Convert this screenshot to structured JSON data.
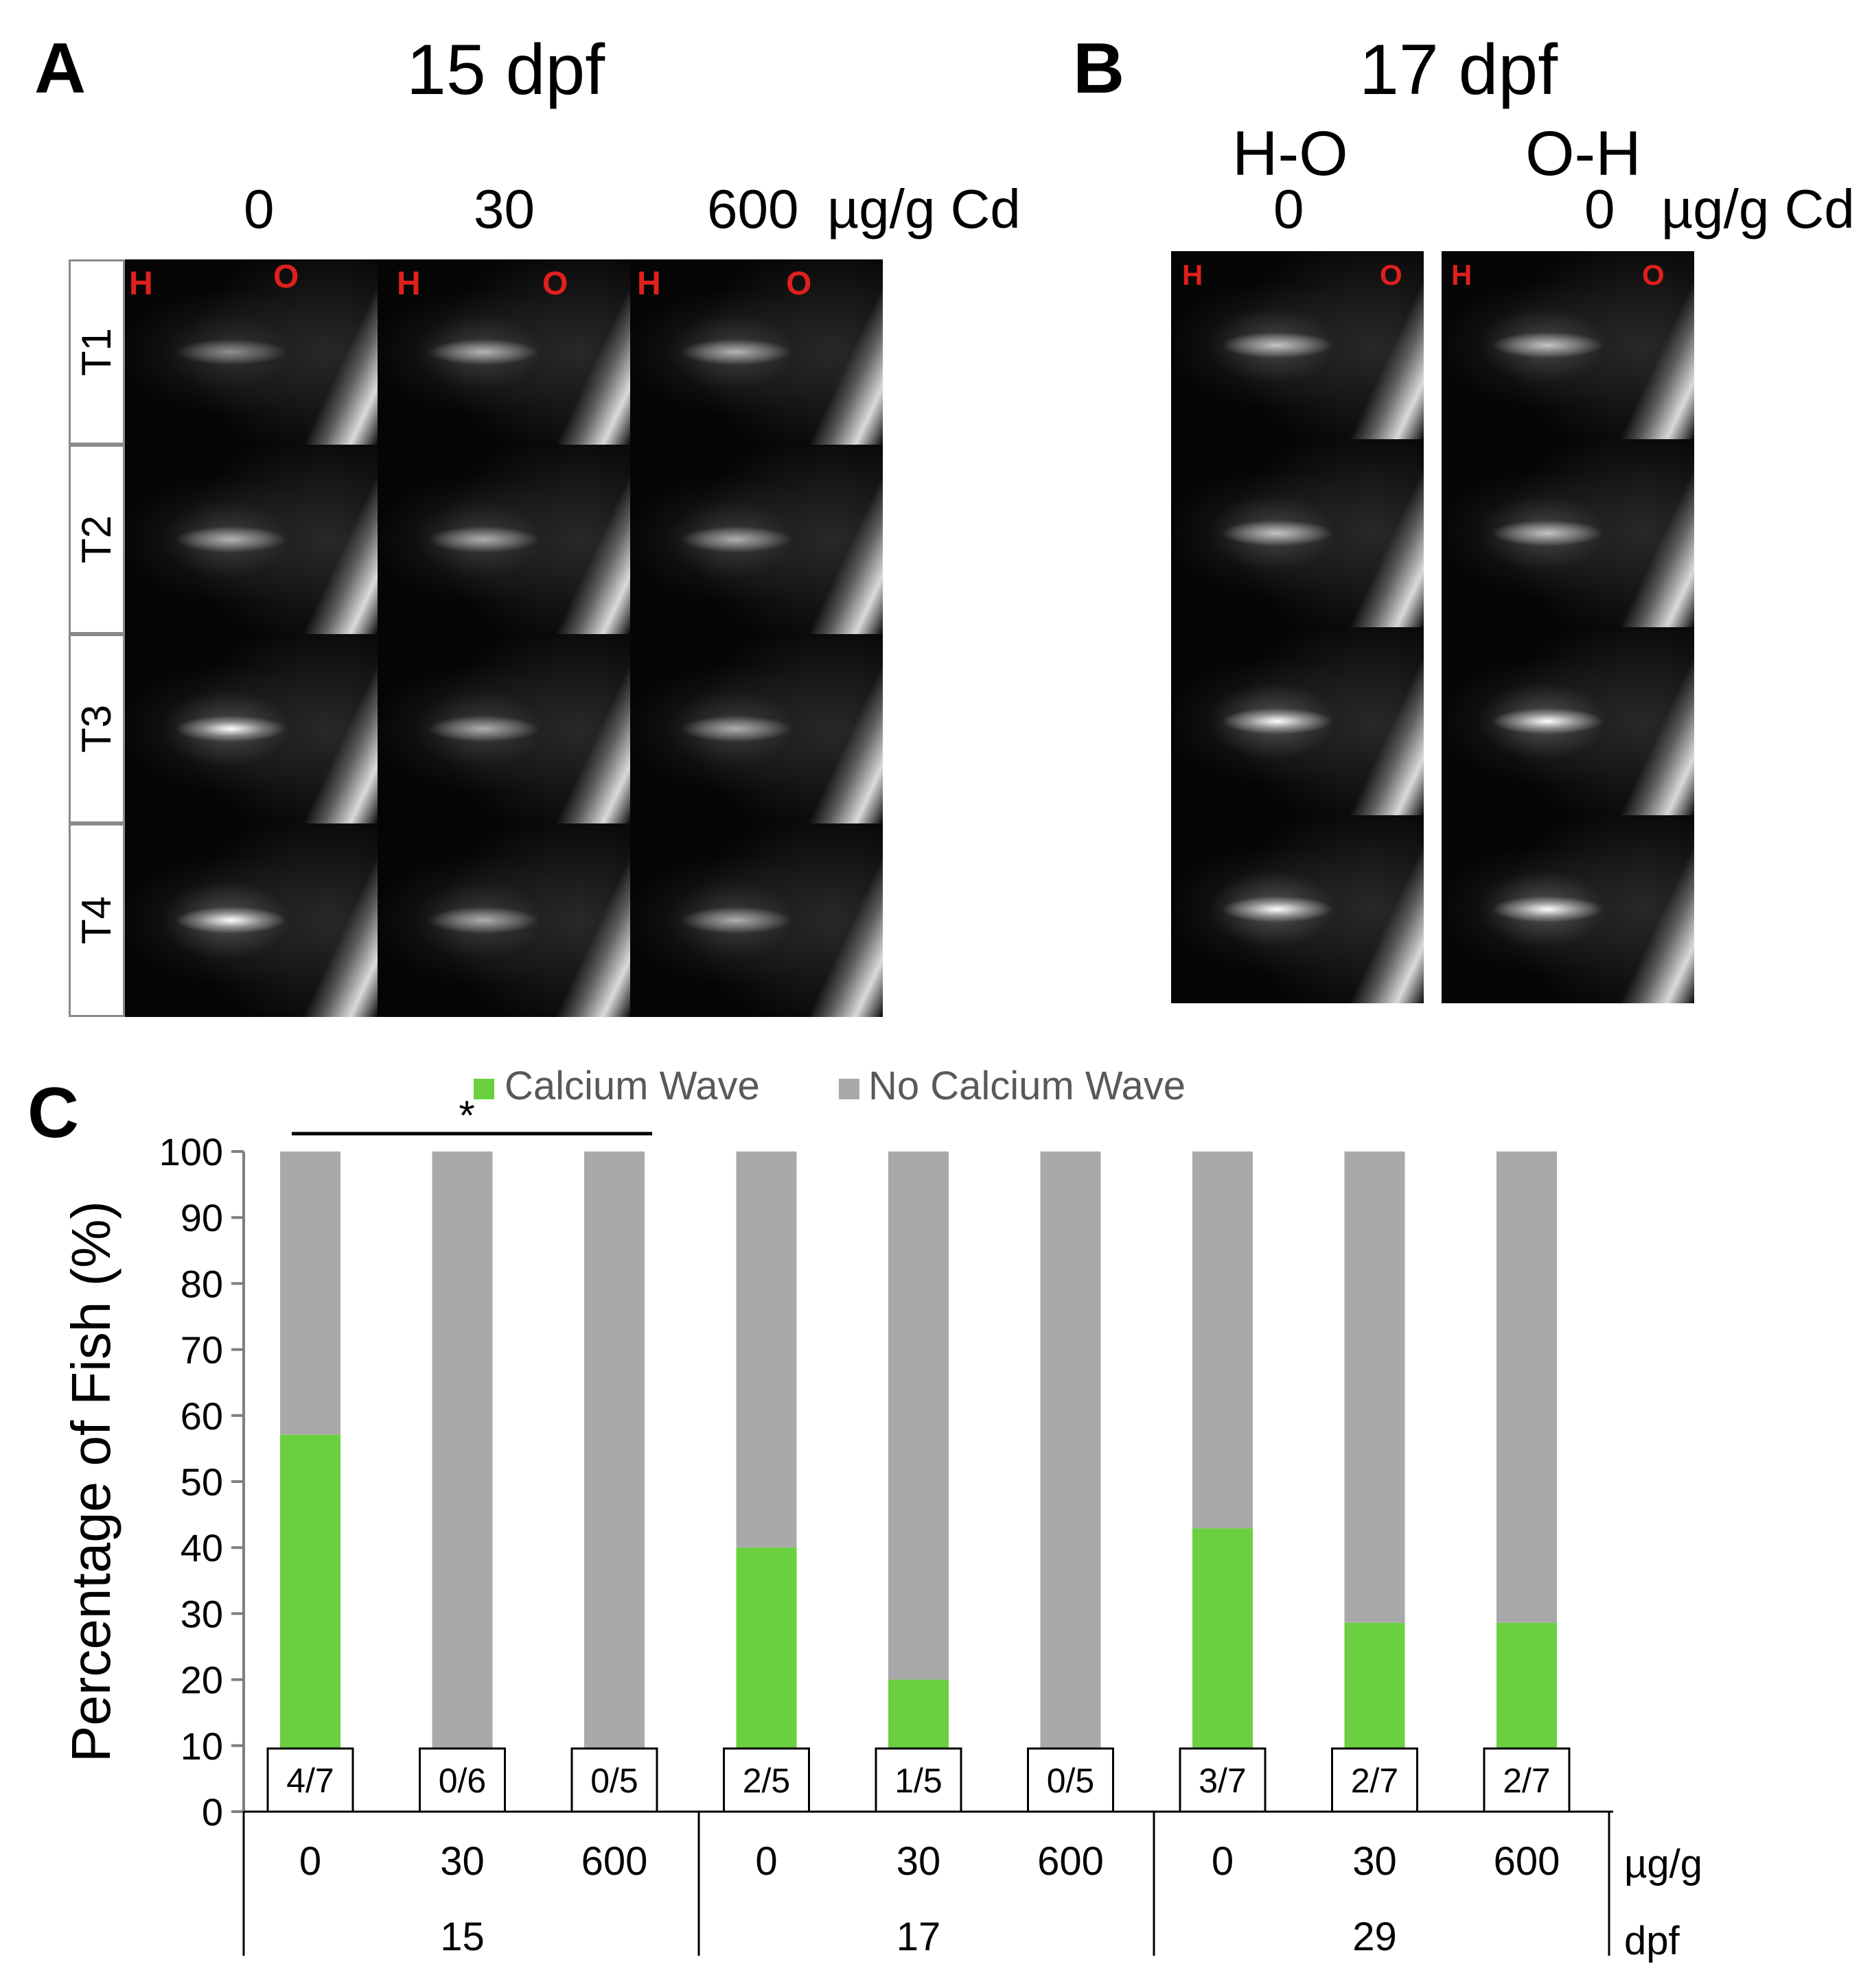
{
  "panel_a": {
    "letter": "A",
    "title": "15 dpf",
    "dose_labels": [
      "0",
      "30",
      "600"
    ],
    "dose_unit": "µg/g Cd",
    "time_labels": [
      "T1",
      "T2",
      "T3",
      "T4"
    ],
    "orientation": {
      "h": "H",
      "o": "O"
    }
  },
  "panel_b": {
    "letter": "B",
    "title": "17 dpf",
    "col_labels": [
      "H-O",
      "O-H"
    ],
    "dose_labels": [
      "0",
      "0"
    ],
    "dose_unit": "µg/g Cd",
    "orientation": {
      "h": "H",
      "o": "O"
    }
  },
  "panel_c": {
    "letter": "C",
    "significance": "*"
  },
  "chart_data": {
    "type": "bar",
    "stacked": true,
    "ylabel": "Percentage of Fish (%)",
    "ylim": [
      0,
      100
    ],
    "yticks": [
      "0",
      "10",
      "20",
      "30",
      "40",
      "50",
      "60",
      "70",
      "80",
      "90",
      "100"
    ],
    "legend_position": "top",
    "categories": [
      "0",
      "30",
      "600",
      "0",
      "30",
      "600",
      "0",
      "30",
      "600"
    ],
    "groups": [
      {
        "label": "15",
        "start": 0,
        "end": 2
      },
      {
        "label": "17",
        "start": 3,
        "end": 5
      },
      {
        "label": "29",
        "start": 6,
        "end": 8
      }
    ],
    "x_unit_labels": {
      "dose": "µg/g",
      "age": "dpf"
    },
    "series": [
      {
        "name": "Calcium Wave",
        "color": "#6ad03f",
        "values": [
          57.1,
          0,
          0,
          40,
          20,
          0,
          42.9,
          28.6,
          28.6
        ]
      },
      {
        "name": "No Calcium Wave",
        "color": "#a9a9a9",
        "values": [
          42.9,
          100,
          100,
          60,
          80,
          100,
          57.1,
          71.4,
          71.4
        ]
      }
    ],
    "box_labels": [
      "4/7",
      "0/6",
      "0/5",
      "2/5",
      "1/5",
      "0/5",
      "3/7",
      "2/7",
      "2/7"
    ]
  }
}
